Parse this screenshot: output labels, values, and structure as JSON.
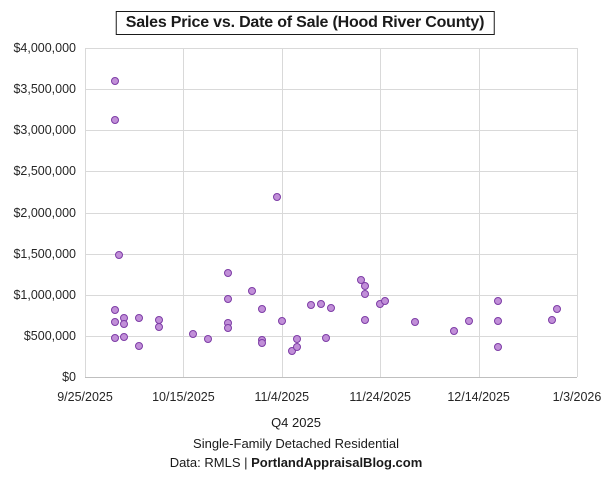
{
  "title": "Sales Price vs. Date of Sale (Hood River County)",
  "footer": {
    "axis_title": "Q4 2025",
    "subtitle": "Single-Family Detached Residential",
    "source_prefix": "Data: RMLS | ",
    "source_bold": "PortlandAppraisalBlog.com"
  },
  "colors": {
    "marker_fill": "#c18fd8",
    "marker_stroke": "#7d3ca6",
    "gridline": "#d9d9d9",
    "axis_line": "#bfbfbf"
  },
  "chart_data": {
    "type": "scatter",
    "title": "Sales Price vs. Date of Sale (Hood River County)",
    "xlabel": "Q4 2025",
    "ylabel": "",
    "grid": true,
    "legend": "none",
    "x_axis": {
      "start_date": "9/25/2025",
      "end_date": "1/3/2026",
      "tick_interval_days": 20,
      "tick_labels": [
        "9/25/2025",
        "10/15/2025",
        "11/4/2025",
        "11/24/2025",
        "12/14/2025",
        "1/3/2026"
      ]
    },
    "y_axis": {
      "min": 0,
      "max": 4000000,
      "tick_step": 500000,
      "tick_values": [
        0,
        500000,
        1000000,
        1500000,
        2000000,
        2500000,
        3000000,
        3500000,
        4000000
      ],
      "tick_labels": [
        "$0",
        "$500,000",
        "$1,000,000",
        "$1,500,000",
        "$2,000,000",
        "$2,500,000",
        "$3,000,000",
        "$3,500,000",
        "$4,000,000"
      ]
    },
    "points": [
      {
        "date": "10/1/2025",
        "price": 3600000
      },
      {
        "date": "10/1/2025",
        "price": 3120000
      },
      {
        "date": "10/2/2025",
        "price": 1480000
      },
      {
        "date": "10/1/2025",
        "price": 820000
      },
      {
        "date": "10/1/2025",
        "price": 665000
      },
      {
        "date": "10/1/2025",
        "price": 480000
      },
      {
        "date": "10/3/2025",
        "price": 720000
      },
      {
        "date": "10/3/2025",
        "price": 650000
      },
      {
        "date": "10/3/2025",
        "price": 490000
      },
      {
        "date": "10/6/2025",
        "price": 715000
      },
      {
        "date": "10/6/2025",
        "price": 375000
      },
      {
        "date": "10/10/2025",
        "price": 695000
      },
      {
        "date": "10/10/2025",
        "price": 610000
      },
      {
        "date": "10/17/2025",
        "price": 520000
      },
      {
        "date": "10/20/2025",
        "price": 458000
      },
      {
        "date": "10/24/2025",
        "price": 1270000
      },
      {
        "date": "10/24/2025",
        "price": 950000
      },
      {
        "date": "10/24/2025",
        "price": 660000
      },
      {
        "date": "10/24/2025",
        "price": 598000
      },
      {
        "date": "10/29/2025",
        "price": 1040000
      },
      {
        "date": "10/31/2025",
        "price": 825000
      },
      {
        "date": "10/31/2025",
        "price": 455000
      },
      {
        "date": "10/31/2025",
        "price": 415000
      },
      {
        "date": "11/3/2025",
        "price": 2190000
      },
      {
        "date": "11/4/2025",
        "price": 685000
      },
      {
        "date": "11/6/2025",
        "price": 320000
      },
      {
        "date": "11/7/2025",
        "price": 360000
      },
      {
        "date": "11/7/2025",
        "price": 465000
      },
      {
        "date": "11/10/2025",
        "price": 875000
      },
      {
        "date": "11/12/2025",
        "price": 890000
      },
      {
        "date": "11/13/2025",
        "price": 480000
      },
      {
        "date": "11/14/2025",
        "price": 840000
      },
      {
        "date": "11/20/2025",
        "price": 1175000
      },
      {
        "date": "11/21/2025",
        "price": 1110000
      },
      {
        "date": "11/21/2025",
        "price": 1010000
      },
      {
        "date": "11/21/2025",
        "price": 690000
      },
      {
        "date": "11/24/2025",
        "price": 885000
      },
      {
        "date": "11/25/2025",
        "price": 925000
      },
      {
        "date": "12/1/2025",
        "price": 665000
      },
      {
        "date": "12/9/2025",
        "price": 565000
      },
      {
        "date": "12/12/2025",
        "price": 685000
      },
      {
        "date": "12/18/2025",
        "price": 925000
      },
      {
        "date": "12/18/2025",
        "price": 685000
      },
      {
        "date": "12/18/2025",
        "price": 360000
      },
      {
        "date": "12/29/2025",
        "price": 695000
      },
      {
        "date": "12/30/2025",
        "price": 825000
      }
    ]
  }
}
